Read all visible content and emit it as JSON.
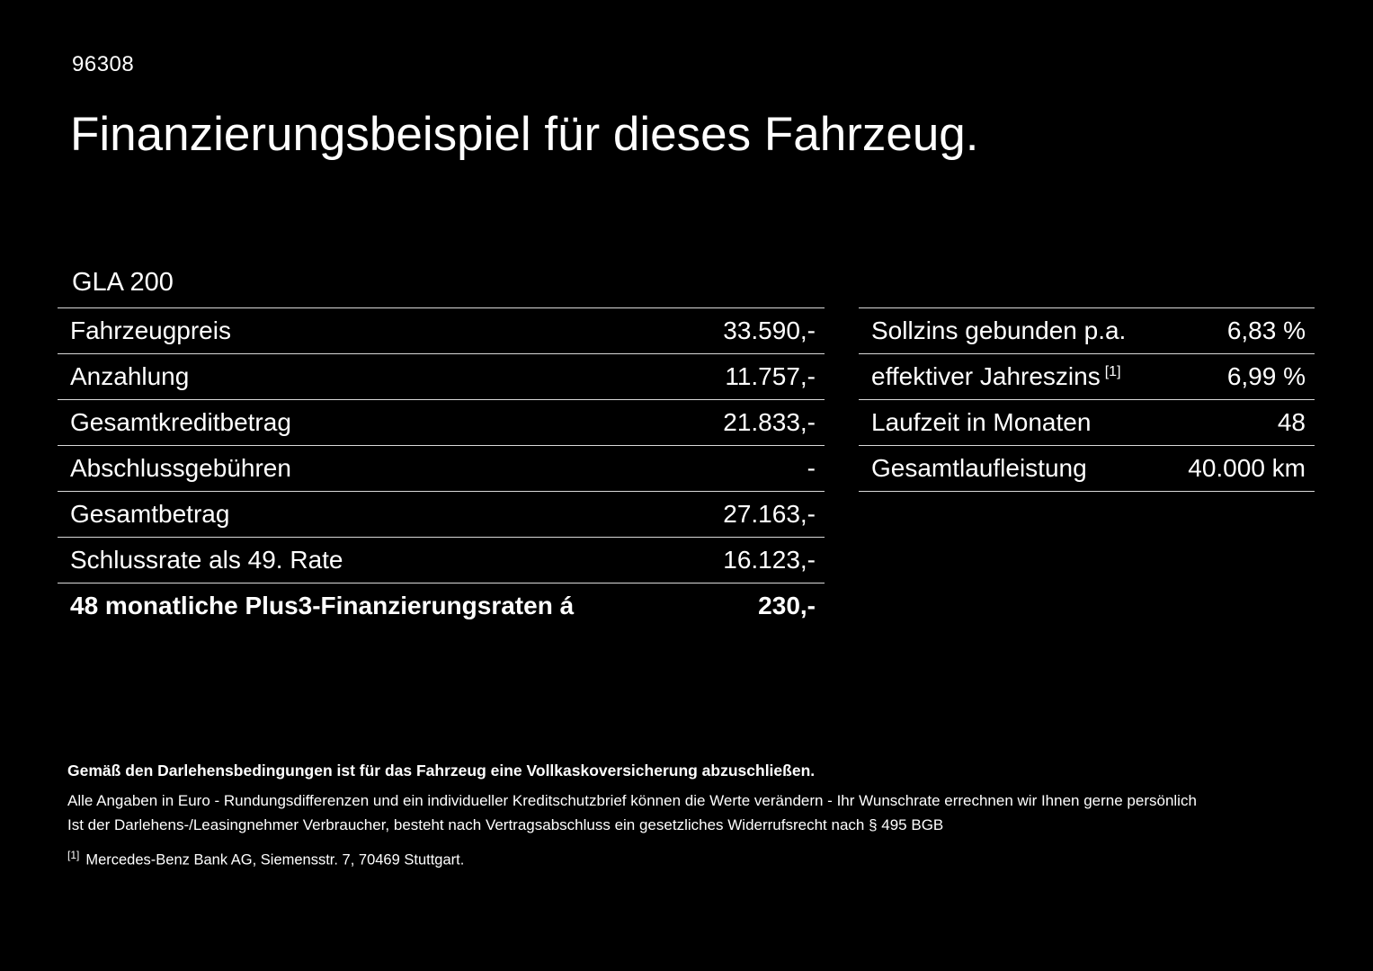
{
  "page": {
    "code": "96308",
    "title": "Finanzierungsbeispiel für dieses Fahrzeug.",
    "model": "GLA 200"
  },
  "tables": {
    "left": {
      "rows": [
        {
          "label": "Fahrzeugpreis",
          "value": "33.590,-"
        },
        {
          "label": "Anzahlung",
          "value": "11.757,-"
        },
        {
          "label": "Gesamtkreditbetrag",
          "value": "21.833,-"
        },
        {
          "label": "Abschlussgebühren",
          "value": "-"
        },
        {
          "label": "Gesamtbetrag",
          "value": "27.163,-"
        },
        {
          "label": "Schlussrate als 49. Rate",
          "value": "16.123,-"
        },
        {
          "label": "48 monatliche Plus3-Finanzierungsraten á",
          "value": "230,-"
        }
      ]
    },
    "right": {
      "rows": [
        {
          "label": "Sollzins gebunden p.a.",
          "value": "6,83 %"
        },
        {
          "label": "effektiver Jahreszins",
          "sup": "[1]",
          "value": "6,99 %"
        },
        {
          "label": "Laufzeit in Monaten",
          "value": "48"
        },
        {
          "label": "Gesamtlaufleistung",
          "value": "40.000 km"
        }
      ]
    }
  },
  "footer": {
    "line_bold": "Gemäß den Darlehensbedingungen ist für das Fahrzeug eine Vollkaskoversicherung abzuschließen.",
    "line1": "Alle Angaben in Euro - Rundungsdifferenzen und ein individueller Kreditschutzbrief können die Werte verändern - Ihr Wunschrate errechnen wir Ihnen gerne persönlich",
    "line2": "Ist der Darlehens-/Leasingnehmer Verbraucher, besteht nach Vertragsabschluss ein gesetzliches Widerrufsrecht nach § 495 BGB",
    "footnote_marker": "[1]",
    "footnote_text": "Mercedes-Benz Bank AG, Siemensstr. 7, 70469 Stuttgart."
  },
  "colors": {
    "background": "#000000",
    "text": "#ffffff",
    "divider": "#d9d9d9"
  }
}
